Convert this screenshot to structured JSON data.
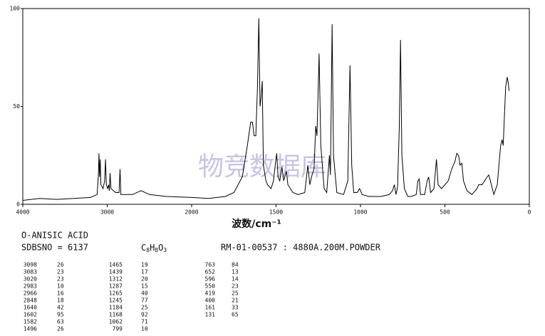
{
  "chart_data": {
    "type": "line",
    "xlabel": "波数/cm⁻¹",
    "watermark": "物竞数据库",
    "xlim": [
      4000,
      0
    ],
    "xbreak": 2000,
    "xticks": [
      4000,
      3000,
      2000,
      1500,
      1000,
      500,
      0
    ],
    "ylim": [
      0,
      100
    ],
    "yticks": [
      0,
      50,
      100
    ],
    "color": "#000000",
    "x": [
      4000,
      3800,
      3600,
      3400,
      3200,
      3120,
      3105,
      3098,
      3090,
      3083,
      3075,
      3050,
      3030,
      3020,
      3010,
      2995,
      2983,
      2975,
      2966,
      2955,
      2900,
      2860,
      2848,
      2838,
      2700,
      2600,
      2500,
      2300,
      2000,
      1900,
      1800,
      1750,
      1700,
      1670,
      1650,
      1640,
      1630,
      1620,
      1610,
      1602,
      1595,
      1588,
      1582,
      1575,
      1560,
      1550,
      1530,
      1515,
      1505,
      1496,
      1488,
      1478,
      1465,
      1455,
      1439,
      1430,
      1400,
      1370,
      1330,
      1312,
      1300,
      1287,
      1275,
      1265,
      1258,
      1245,
      1235,
      1215,
      1200,
      1184,
      1178,
      1168,
      1160,
      1140,
      1100,
      1075,
      1062,
      1052,
      1040,
      1020,
      1005,
      990,
      950,
      880,
      830,
      810,
      799,
      790,
      780,
      770,
      763,
      755,
      740,
      720,
      700,
      670,
      660,
      652,
      645,
      620,
      605,
      596,
      585,
      565,
      550,
      540,
      520,
      480,
      460,
      440,
      430,
      419,
      410,
      400,
      390,
      370,
      340,
      310,
      300,
      280,
      250,
      240,
      225,
      210,
      190,
      170,
      161,
      155,
      145,
      140,
      131,
      125,
      120
    ],
    "values": [
      2,
      3,
      2.5,
      3,
      3.5,
      5,
      15,
      26,
      14,
      23,
      10,
      8,
      12,
      23,
      10,
      8,
      10,
      7,
      16,
      8,
      6,
      6,
      18,
      5,
      5,
      7,
      5,
      4,
      3.5,
      3,
      4,
      6,
      14,
      30,
      42,
      42,
      35,
      35,
      60,
      95,
      50,
      55,
      63,
      20,
      12,
      10,
      8,
      12,
      20,
      26,
      14,
      12,
      19,
      12,
      17,
      10,
      6,
      5,
      6,
      20,
      10,
      15,
      18,
      40,
      35,
      77,
      30,
      8,
      6,
      25,
      15,
      92,
      25,
      6,
      5,
      12,
      71,
      20,
      6,
      6,
      8,
      5,
      4,
      4,
      5,
      7,
      10,
      5,
      9,
      40,
      84,
      25,
      8,
      4,
      4,
      5,
      12,
      13,
      5,
      5,
      12,
      14,
      6,
      8,
      23,
      10,
      8,
      12,
      18,
      22,
      26,
      25,
      20,
      21,
      12,
      7,
      5,
      8,
      10,
      10,
      14,
      15,
      10,
      5,
      10,
      30,
      33,
      30,
      50,
      60,
      65,
      62,
      58
    ]
  },
  "compound": "O-ANISIC ACID",
  "sdbs_no": "SDBSNO = 6137",
  "formula": "C8H8O3",
  "spectrum_id": "RM-01-00537 : 4880A.200M.POWDER",
  "peak_table": [
    [
      [
        3098,
        26
      ],
      [
        3083,
        23
      ],
      [
        3020,
        23
      ],
      [
        2983,
        10
      ],
      [
        2966,
        16
      ],
      [
        2848,
        18
      ],
      [
        1640,
        42
      ],
      [
        1602,
        95
      ],
      [
        1582,
        63
      ],
      [
        1496,
        26
      ]
    ],
    [
      [
        1465,
        19
      ],
      [
        1439,
        17
      ],
      [
        1312,
        20
      ],
      [
        1287,
        15
      ],
      [
        1265,
        40
      ],
      [
        1245,
        77
      ],
      [
        1184,
        25
      ],
      [
        1168,
        92
      ],
      [
        1062,
        71
      ],
      [
        799,
        10
      ]
    ],
    [
      [
        763,
        84
      ],
      [
        652,
        13
      ],
      [
        596,
        14
      ],
      [
        550,
        23
      ],
      [
        419,
        25
      ],
      [
        400,
        21
      ],
      [
        161,
        33
      ],
      [
        131,
        65
      ]
    ]
  ]
}
